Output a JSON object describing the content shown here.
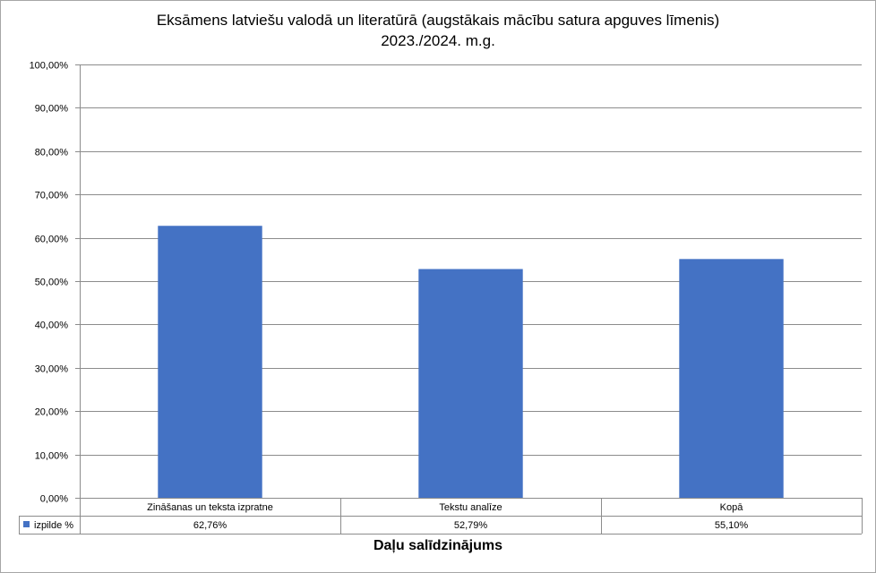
{
  "chart_data": {
    "type": "bar",
    "title": "Eksāmens latviešu valodā un literatūrā (augstākais mācību satura apguves līmenis)",
    "subtitle": "2023./2024. m.g.",
    "xlabel": "Daļu salīdzinājums",
    "ylabel": "",
    "ylim": [
      0,
      100
    ],
    "y_ticks": [
      "0,00%",
      "10,00%",
      "20,00%",
      "30,00%",
      "40,00%",
      "50,00%",
      "60,00%",
      "70,00%",
      "80,00%",
      "90,00%",
      "100,00%"
    ],
    "categories": [
      "Zināšanas un teksta izpratne",
      "Tekstu analīze",
      "Kopā"
    ],
    "series": [
      {
        "name": "izpilde %",
        "values": [
          62.76,
          52.79,
          55.1
        ],
        "value_labels": [
          "62,76%",
          "52,79%",
          "55,10%"
        ],
        "color": "#4472C4"
      }
    ],
    "grid": true,
    "legend": "data-table"
  }
}
